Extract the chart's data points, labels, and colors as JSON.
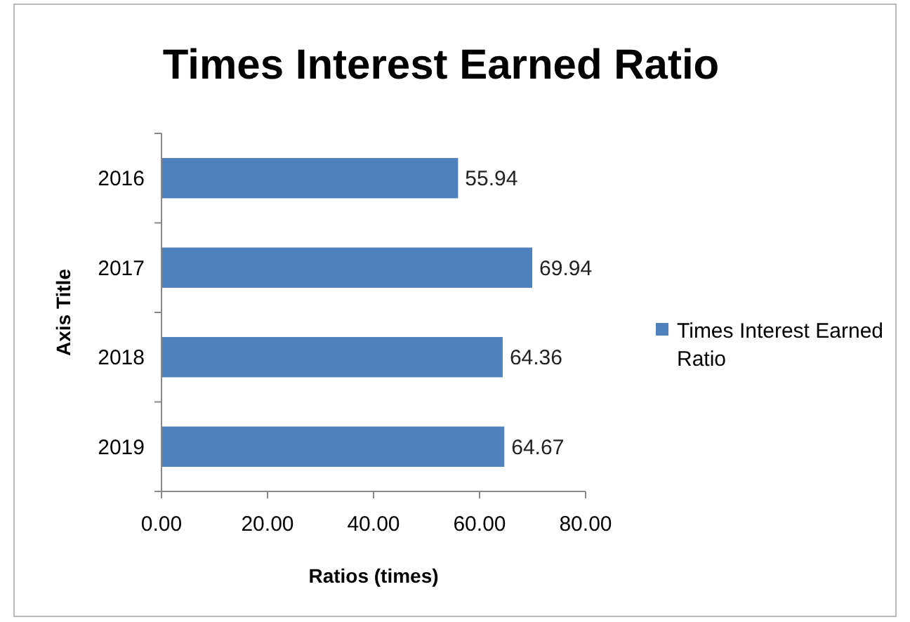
{
  "chart_data": {
    "type": "bar",
    "orientation": "horizontal",
    "title": "Times Interest Earned Ratio",
    "xlabel": "Ratios (times)",
    "ylabel": "Axis Title",
    "categories": [
      "2016",
      "2017",
      "2018",
      "2019"
    ],
    "series": [
      {
        "name": "Times Interest Earned Ratio",
        "color": "#4f81bd",
        "values": [
          55.94,
          69.94,
          64.36,
          64.67
        ]
      }
    ],
    "xlim": [
      0,
      80
    ],
    "xticks": [
      {
        "value": 0,
        "label": "0.00"
      },
      {
        "value": 20,
        "label": "20.00"
      },
      {
        "value": 40,
        "label": "40.00"
      },
      {
        "value": 60,
        "label": "60.00"
      },
      {
        "value": 80,
        "label": "80.00"
      }
    ],
    "data_labels": true,
    "grid": false,
    "legend": "right"
  }
}
